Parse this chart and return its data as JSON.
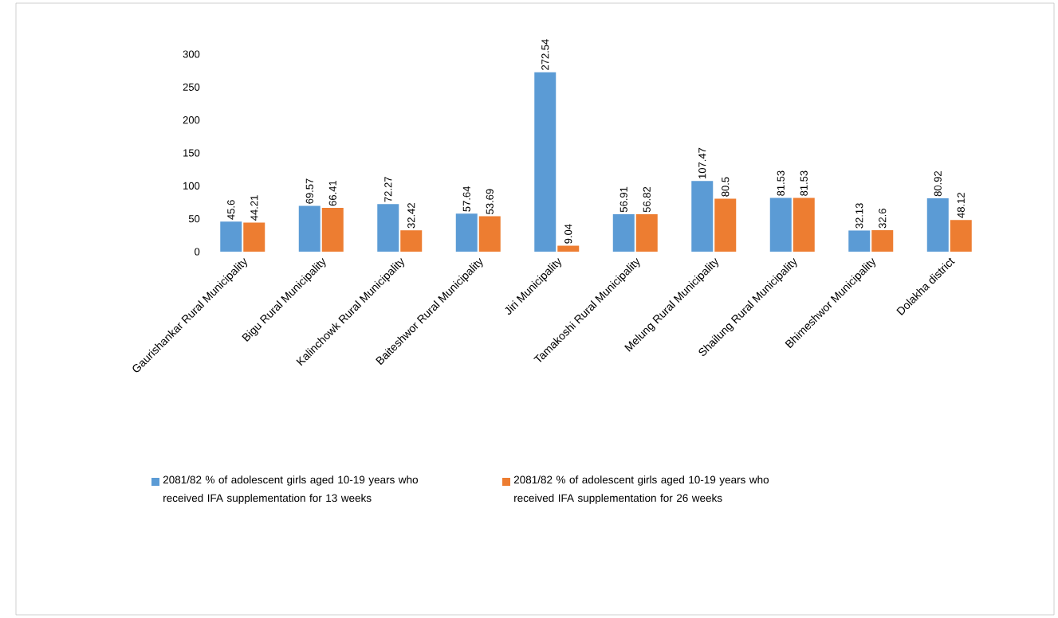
{
  "chart_data": {
    "type": "bar",
    "categories": [
      "Gaurishankar Rural Municipality",
      "Bigu Rural Municipality",
      "Kalinchowk Rural Municipality",
      "Baiteshwor Rural Municipality",
      "Jiri Municipality",
      "Tamakoshi Rural Municipality",
      "Melung Rural Municipality",
      "Shailung Rural Municipality",
      "Bhimeshwor Municipality",
      "Dolakha district"
    ],
    "series": [
      {
        "name": "2081/82  % of adolescent girls aged 10-19 years who received IFA supplementation for 13 weeks",
        "color": "#5b9bd5",
        "values": [
          45.6,
          69.57,
          72.27,
          57.64,
          272.54,
          56.91,
          107.47,
          81.53,
          32.13,
          80.92
        ]
      },
      {
        "name": "2081/82  % of adolescent girls aged 10-19 years who received IFA supplementation for 26 weeks",
        "color": "#ed7d31",
        "values": [
          44.21,
          66.41,
          32.42,
          53.69,
          9.04,
          56.82,
          80.5,
          81.53,
          32.6,
          48.12
        ]
      }
    ],
    "ylim": [
      0,
      300
    ],
    "yticks": [
      0,
      50,
      100,
      150,
      200,
      250,
      300
    ],
    "data_labels": true,
    "legend": "bottom"
  }
}
